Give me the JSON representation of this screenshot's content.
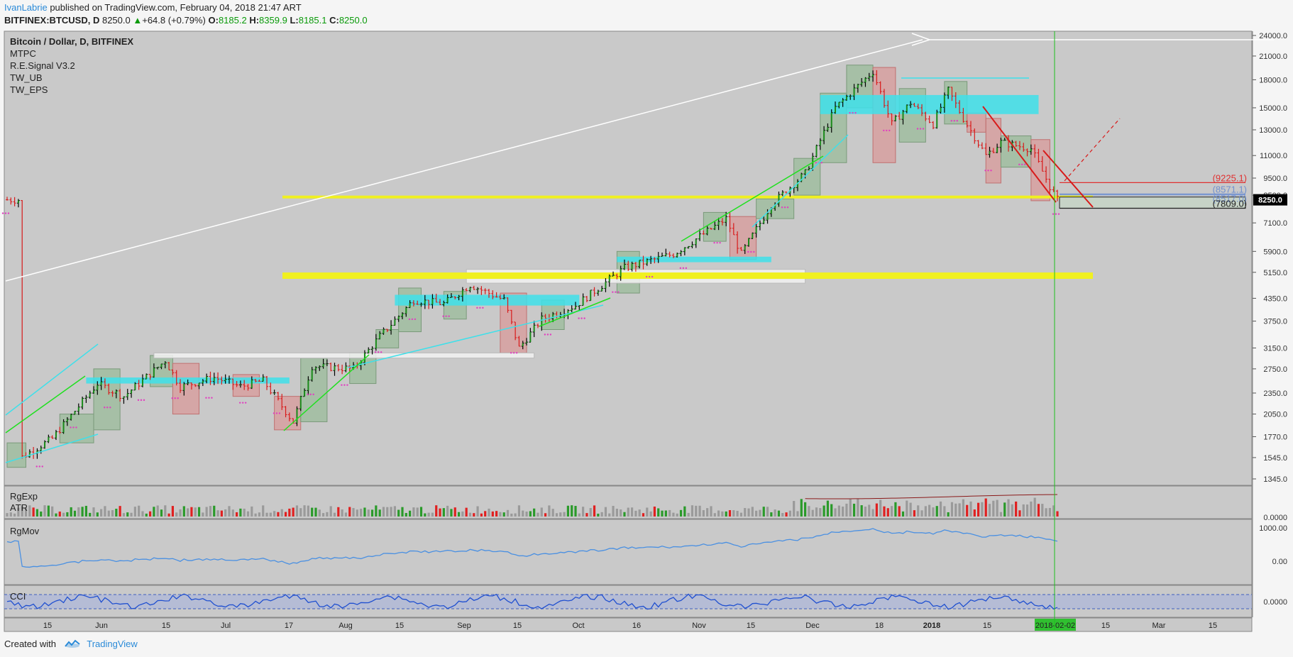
{
  "header": {
    "author": "IvanLabrie",
    "published": " published on TradingView.com, February 04, 2018 21:47 ART",
    "symbol": "BITFINEX:BTCUSD, D",
    "last": "8250.0",
    "change": "+64.8 (+0.79%)",
    "open_label": "O:",
    "open": "8185.2",
    "high_label": "H:",
    "high": "8359.9",
    "low_label": "L:",
    "low": "8185.1",
    "close_label": "C:",
    "close": "8250.0"
  },
  "legend": {
    "title": "Bitcoin / Dollar, D, BITFINEX",
    "indicators": [
      "MTPC",
      "R.E.Signal V3.2",
      "TW_UB",
      "TW_EPS"
    ]
  },
  "panels": {
    "volume_labels": [
      "RgExp",
      "ATR"
    ],
    "rgmov_label": "RgMov",
    "cci_label": "CCI"
  },
  "footer": {
    "created_with": "Created with",
    "brand": "TradingView"
  },
  "colors": {
    "bg": "#c9c9c9",
    "up": "#1a8a1a",
    "down": "#d81a1a",
    "cyan": "#3ee0ea",
    "yellow": "#f0f020",
    "green_line": "#20e020",
    "line_blue": "#4a90e2",
    "crosshair": "#20c020"
  },
  "chart_data": [
    {
      "type": "candlestick",
      "title": "Bitcoin / Dollar, D, BITFINEX",
      "y_scale": "log",
      "yticks": [
        24000,
        21000,
        18000,
        15000,
        13000,
        11000,
        9500,
        8500,
        7100,
        5900,
        5150,
        4350,
        3750,
        3150,
        2750,
        2350,
        2050,
        1770,
        1545,
        1345
      ],
      "ylim": [
        1345,
        24000
      ],
      "xticks": [
        "15",
        "Jun",
        "15",
        "Jul",
        "17",
        "Aug",
        "15",
        "Sep",
        "15",
        "Oct",
        "16",
        "Nov",
        "15",
        "Dec",
        "18",
        "2018",
        "15",
        "2018-02-02",
        "15",
        "Mar",
        "15"
      ],
      "last_price": "8250.0",
      "price_level_labels": [
        "(9225.1)",
        "(8571.1)",
        "(8517.0)",
        "(7809.0)"
      ],
      "price_path": [
        [
          "2017-05-05",
          1550
        ],
        [
          "2017-05-13",
          1750
        ],
        [
          "2017-05-25",
          2500
        ],
        [
          "2017-06-01",
          2300
        ],
        [
          "2017-06-12",
          2900
        ],
        [
          "2017-06-16",
          2450
        ],
        [
          "2017-06-25",
          2600
        ],
        [
          "2017-07-02",
          2450
        ],
        [
          "2017-07-08",
          2550
        ],
        [
          "2017-07-16",
          1950
        ],
        [
          "2017-07-21",
          2800
        ],
        [
          "2017-08-01",
          2750
        ],
        [
          "2017-08-08",
          3400
        ],
        [
          "2017-08-17",
          4300
        ],
        [
          "2017-08-25",
          4200
        ],
        [
          "2017-09-01",
          4750
        ],
        [
          "2017-09-10",
          4300
        ],
        [
          "2017-09-14",
          3150
        ],
        [
          "2017-09-20",
          3800
        ],
        [
          "2017-09-29",
          4150
        ],
        [
          "2017-10-12",
          5300
        ],
        [
          "2017-10-25",
          5800
        ],
        [
          "2017-11-01",
          6500
        ],
        [
          "2017-11-08",
          7300
        ],
        [
          "2017-11-12",
          5800
        ],
        [
          "2017-11-20",
          8000
        ],
        [
          "2017-11-29",
          9800
        ],
        [
          "2017-12-07",
          15000
        ],
        [
          "2017-12-17",
          19000
        ],
        [
          "2017-12-22",
          13500
        ],
        [
          "2017-12-27",
          15500
        ],
        [
          "2018-01-02",
          13500
        ],
        [
          "2018-01-06",
          16800
        ],
        [
          "2018-01-10",
          14000
        ],
        [
          "2018-01-16",
          11000
        ],
        [
          "2018-01-20",
          12000
        ],
        [
          "2018-01-28",
          11500
        ],
        [
          "2018-02-02",
          9000
        ],
        [
          "2018-02-04",
          8250
        ]
      ]
    },
    {
      "type": "bar",
      "title": "RgExp / ATR",
      "series": [
        {
          "values": "daily volume bars colored by direction"
        }
      ]
    },
    {
      "type": "line",
      "title": "RgMov",
      "yticks": [
        1000.0,
        0.0
      ],
      "ytick_labels": [
        "1000.00",
        "0.00"
      ]
    },
    {
      "type": "line",
      "title": "CCI",
      "yticks": [
        0.0
      ],
      "ytick_labels": [
        "0.0000"
      ]
    }
  ],
  "volume_tick": "0.0000"
}
